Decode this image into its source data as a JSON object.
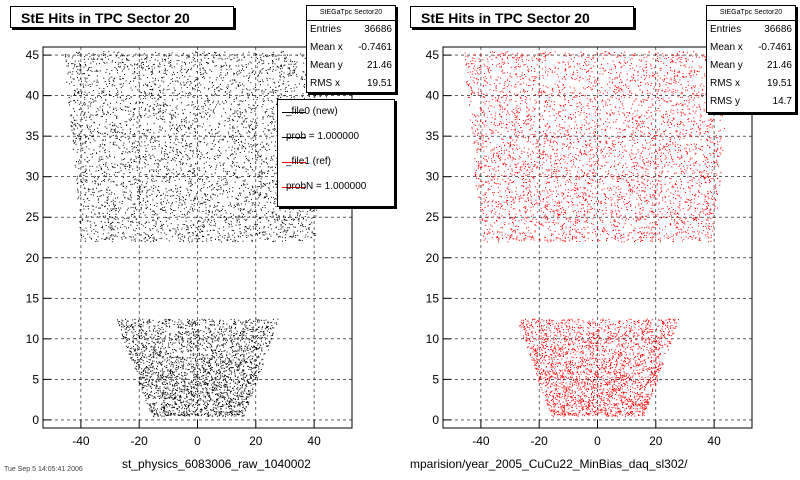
{
  "footer_text": "Tue Sep 5 14:05:41 2006",
  "colors": {
    "left_points": "#000000",
    "right_points": "#ff0000"
  },
  "left": {
    "title": "StE Hits in TPC Sector 20",
    "xlabel": "st_physics_6083006_raw_1040002",
    "stats": {
      "name": "StEGaTpc Sector20",
      "rows": [
        {
          "label": "Entries",
          "value": "36686"
        },
        {
          "label": "Mean x",
          "value": "-0.7461"
        },
        {
          "label": "Mean y",
          "value": "21.46"
        },
        {
          "label": "RMS x",
          "value": "19.51"
        }
      ]
    },
    "legend": [
      {
        "label": "_file0 (new)",
        "color": "#000000"
      },
      {
        "label": "prob = 1.000000",
        "color": "#000000"
      },
      {
        "label": "_file1 (ref)",
        "color": "#ff0000"
      },
      {
        "label": "probN = 1.000000",
        "color": "#ff0000"
      }
    ]
  },
  "right": {
    "title": "StE Hits in TPC Sector 20",
    "xlabel": "mparision/year_2005_CuCu22_MinBias_daq_sl302/",
    "stats": {
      "name": "StEGaTpc Sector20",
      "rows": [
        {
          "label": "Entries",
          "value": "36686"
        },
        {
          "label": "Mean x",
          "value": "-0.7461"
        },
        {
          "label": "Mean y",
          "value": "21.46"
        },
        {
          "label": "RMS x",
          "value": "19.51"
        },
        {
          "label": "RMS y",
          "value": "14.7"
        }
      ]
    }
  },
  "chart_data": [
    {
      "type": "scatter",
      "title": "StE Hits in TPC Sector 20",
      "xlabel": "st_physics_6083006_raw_1040002",
      "xlim": [
        -53,
        53
      ],
      "ylim": [
        -1,
        46
      ],
      "xticks": [
        -40,
        -20,
        0,
        20,
        40
      ],
      "yticks": [
        0,
        5,
        10,
        15,
        20,
        25,
        30,
        35,
        40,
        45
      ],
      "grid": true,
      "point_color": "#000000",
      "regions": [
        {
          "name": "outer sector",
          "y_range": [
            22,
            45.5
          ],
          "x_half_width_at_y": [
            [
              22,
              40
            ],
            [
              45.5,
              46
            ]
          ]
        },
        {
          "name": "inner sector",
          "y_range": [
            0.5,
            12.5
          ],
          "x_half_width_at_y": [
            [
              0.5,
              16
            ],
            [
              12.5,
              28
            ]
          ]
        }
      ],
      "n_points_approx": 36686
    },
    {
      "type": "scatter",
      "title": "StE Hits in TPC Sector 20",
      "xlabel": "mparision/year_2005_CuCu22_MinBias_daq_sl302/",
      "xlim": [
        -53,
        53
      ],
      "ylim": [
        -1,
        46
      ],
      "xticks": [
        -40,
        -20,
        0,
        20,
        40
      ],
      "yticks": [
        0,
        5,
        10,
        15,
        20,
        25,
        30,
        35,
        40,
        45
      ],
      "grid": true,
      "point_color": "#ff0000",
      "regions": [
        {
          "name": "outer sector",
          "y_range": [
            22,
            45.5
          ],
          "x_half_width_at_y": [
            [
              22,
              40
            ],
            [
              45.5,
              46
            ]
          ]
        },
        {
          "name": "inner sector",
          "y_range": [
            0.5,
            12.5
          ],
          "x_half_width_at_y": [
            [
              0.5,
              16
            ],
            [
              12.5,
              28
            ]
          ]
        }
      ],
      "n_points_approx": 36686
    }
  ]
}
